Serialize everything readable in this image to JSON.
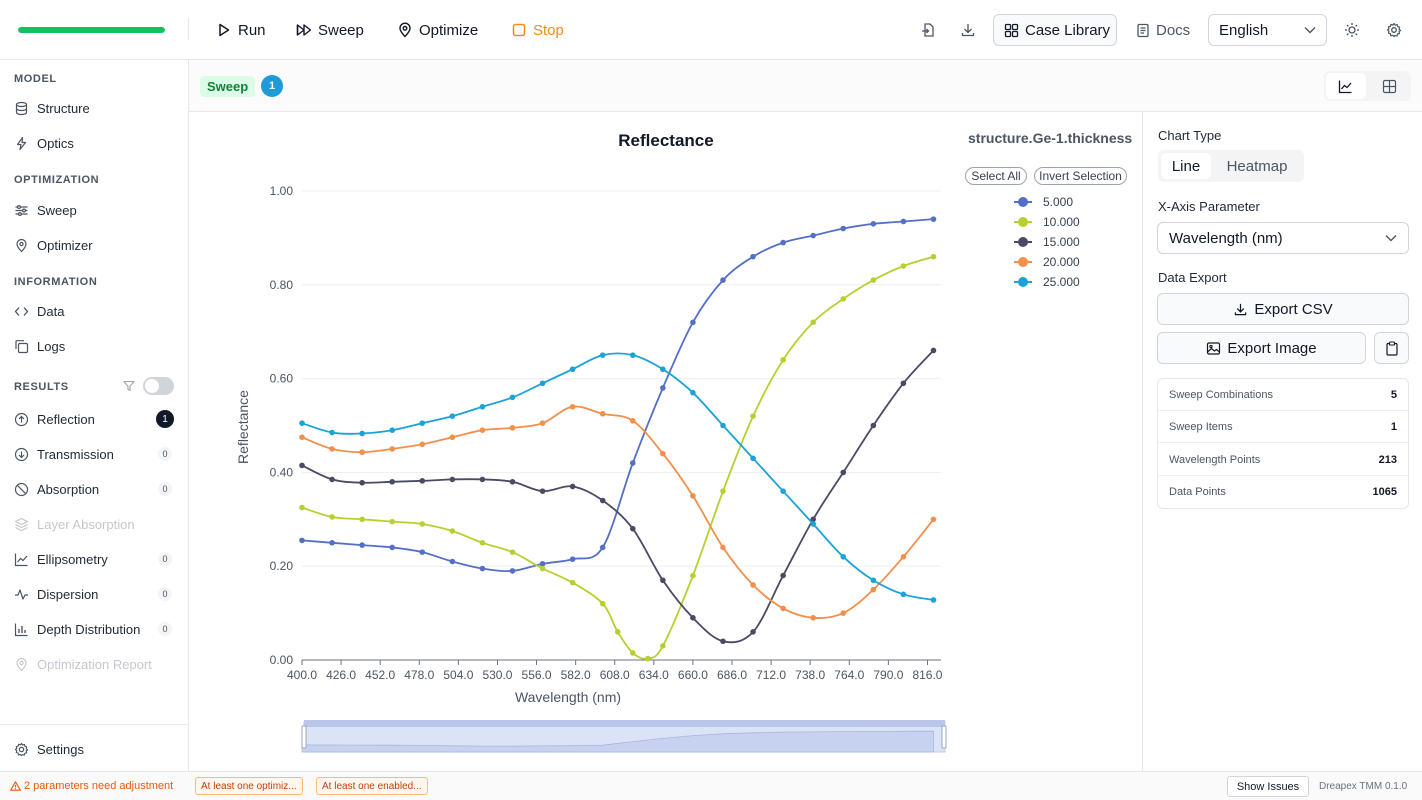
{
  "toolbar": {
    "progress_fraction": 1.0,
    "run_label": "Run",
    "sweep_label": "Sweep",
    "optimize_label": "Optimize",
    "stop_label": "Stop",
    "case_library_label": "Case Library",
    "docs_label": "Docs",
    "language": "English"
  },
  "sidebar": {
    "model_title": "MODEL",
    "model_items": [
      {
        "label": "Structure",
        "icon": "database-icon"
      },
      {
        "label": "Optics",
        "icon": "bolt-icon"
      }
    ],
    "optimization_title": "OPTIMIZATION",
    "optimization_items": [
      {
        "label": "Sweep",
        "icon": "sliders-icon"
      },
      {
        "label": "Optimizer",
        "icon": "location-pin-icon"
      }
    ],
    "information_title": "INFORMATION",
    "information_items": [
      {
        "label": "Data",
        "icon": "code-icon"
      },
      {
        "label": "Logs",
        "icon": "copy-icon"
      }
    ],
    "results_title": "RESULTS",
    "results_items": [
      {
        "label": "Reflection",
        "count": "1",
        "active": true
      },
      {
        "label": "Transmission",
        "count": "0"
      },
      {
        "label": "Absorption",
        "count": "0"
      },
      {
        "label": "Layer Absorption",
        "count": "",
        "disabled": true
      },
      {
        "label": "Ellipsometry",
        "count": "0"
      },
      {
        "label": "Dispersion",
        "count": "0"
      },
      {
        "label": "Depth Distribution",
        "count": "0"
      },
      {
        "label": "Optimization Report",
        "count": "",
        "disabled": true
      }
    ],
    "settings_label": "Settings"
  },
  "results_header": {
    "tag": "Sweep",
    "count": "1"
  },
  "chart_panel": {
    "select_all": "Select All",
    "invert_selection": "Invert Selection",
    "param_name": "structure.Ge-1.thickness"
  },
  "chart_data": {
    "type": "line",
    "title": "Reflectance",
    "xlabel": "Wavelength (nm)",
    "ylabel": "Reflectance",
    "xlim": [
      400,
      825
    ],
    "ylim": [
      0,
      1
    ],
    "x_ticks": [
      "400.0",
      "426.0",
      "452.0",
      "478.0",
      "504.0",
      "530.0",
      "556.0",
      "582.0",
      "608.0",
      "634.0",
      "660.0",
      "686.0",
      "712.0",
      "738.0",
      "764.0",
      "790.0",
      "816.0"
    ],
    "y_ticks": [
      "0.00",
      "0.20",
      "0.40",
      "0.60",
      "0.80",
      "1.00"
    ],
    "grid": true,
    "legend_position": "top-right",
    "series": [
      {
        "name": "5.000",
        "color": "#5470c6",
        "x": [
          400,
          420,
          440,
          460,
          480,
          500,
          520,
          540,
          560,
          580,
          600,
          620,
          640,
          660,
          680,
          700,
          720,
          740,
          760,
          780,
          800,
          820
        ],
        "y": [
          0.255,
          0.25,
          0.245,
          0.24,
          0.23,
          0.21,
          0.195,
          0.19,
          0.205,
          0.215,
          0.24,
          0.42,
          0.58,
          0.72,
          0.81,
          0.86,
          0.89,
          0.905,
          0.92,
          0.93,
          0.935,
          0.94
        ]
      },
      {
        "name": "10.000",
        "color": "#b5d12f",
        "x": [
          400,
          420,
          440,
          460,
          480,
          500,
          520,
          540,
          560,
          580,
          600,
          610,
          620,
          630,
          640,
          660,
          680,
          700,
          720,
          740,
          760,
          780,
          800,
          820
        ],
        "y": [
          0.325,
          0.305,
          0.3,
          0.295,
          0.29,
          0.275,
          0.25,
          0.23,
          0.195,
          0.165,
          0.12,
          0.06,
          0.015,
          0.003,
          0.03,
          0.18,
          0.36,
          0.52,
          0.64,
          0.72,
          0.77,
          0.81,
          0.84,
          0.86
        ]
      },
      {
        "name": "15.000",
        "color": "#4a4a65",
        "x": [
          400,
          420,
          440,
          460,
          480,
          500,
          520,
          540,
          560,
          580,
          600,
          620,
          640,
          660,
          680,
          700,
          720,
          740,
          760,
          780,
          800,
          820
        ],
        "y": [
          0.415,
          0.385,
          0.378,
          0.38,
          0.382,
          0.385,
          0.385,
          0.38,
          0.36,
          0.37,
          0.34,
          0.28,
          0.17,
          0.09,
          0.04,
          0.06,
          0.18,
          0.3,
          0.4,
          0.5,
          0.59,
          0.66
        ]
      },
      {
        "name": "20.000",
        "color": "#f28f4b",
        "x": [
          400,
          420,
          440,
          460,
          480,
          500,
          520,
          540,
          560,
          580,
          600,
          620,
          640,
          660,
          680,
          700,
          720,
          740,
          760,
          780,
          800,
          820
        ],
        "y": [
          0.475,
          0.45,
          0.443,
          0.45,
          0.46,
          0.475,
          0.49,
          0.495,
          0.505,
          0.54,
          0.525,
          0.51,
          0.44,
          0.35,
          0.24,
          0.16,
          0.11,
          0.09,
          0.1,
          0.15,
          0.22,
          0.3
        ]
      },
      {
        "name": "25.000",
        "color": "#1aa3d6",
        "x": [
          400,
          420,
          440,
          460,
          480,
          500,
          520,
          540,
          560,
          580,
          600,
          620,
          640,
          660,
          680,
          700,
          720,
          740,
          760,
          780,
          800,
          820
        ],
        "y": [
          0.505,
          0.485,
          0.483,
          0.49,
          0.505,
          0.52,
          0.54,
          0.56,
          0.59,
          0.62,
          0.65,
          0.65,
          0.62,
          0.57,
          0.5,
          0.43,
          0.36,
          0.29,
          0.22,
          0.17,
          0.14,
          0.128
        ]
      }
    ]
  },
  "right_panel": {
    "chart_type_label": "Chart Type",
    "chart_type_options": [
      "Line",
      "Heatmap"
    ],
    "x_axis_label": "X-Axis Parameter",
    "x_axis_value": "Wavelength (nm)",
    "data_export_label": "Data Export",
    "export_csv": "Export CSV",
    "export_image": "Export Image",
    "stats": [
      {
        "label": "Sweep Combinations",
        "value": "5"
      },
      {
        "label": "Sweep Items",
        "value": "1"
      },
      {
        "label": "Wavelength Points",
        "value": "213"
      },
      {
        "label": "Data Points",
        "value": "1065"
      }
    ]
  },
  "statusbar": {
    "warning": "2 parameters need adjustment",
    "chip1": "At least one optimiz...",
    "chip2": "At least one enabled...",
    "show_issues": "Show Issues",
    "version": "Dreapex TMM 0.1.0"
  }
}
